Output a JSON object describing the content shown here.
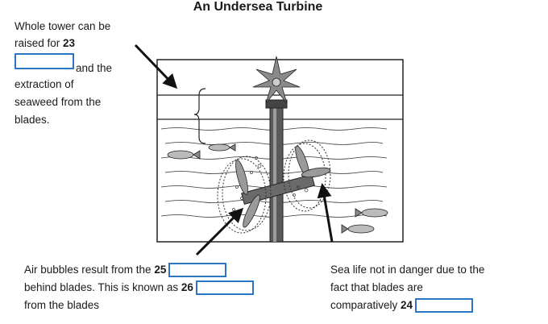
{
  "title": "An Undersea Turbine",
  "q23": {
    "line1": "Whole tower can be",
    "line2_prefix": "raised for",
    "number": "23",
    "after_blank": "and the",
    "line4": "extraction of",
    "line5": "seaweed from the",
    "line6": "blades."
  },
  "q25_26": {
    "prefix25": "Air bubbles result from the",
    "number25": "25",
    "prefix26": "behind blades. This is known as",
    "number26": "26",
    "line3": "from the blades"
  },
  "q24": {
    "line1": "Sea life not in danger due to the",
    "line2": "fact that blades are",
    "prefix": "comparatively",
    "number": "24"
  }
}
